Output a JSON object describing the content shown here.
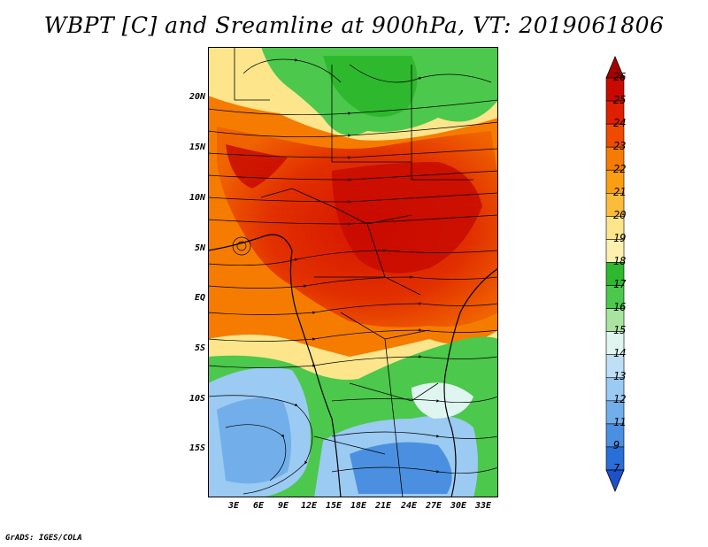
{
  "title": "WBPT [C] and Sreamline at 900hPa, VT: 2019061806",
  "credit": "GrADS: IGES/COLA",
  "map": {
    "lat_labels": [
      "20N",
      "15N",
      "10N",
      "5N",
      "EQ",
      "5S",
      "10S",
      "15S"
    ],
    "lon_labels": [
      "3E",
      "6E",
      "9E",
      "12E",
      "15E",
      "18E",
      "21E",
      "24E",
      "27E",
      "30E",
      "33E"
    ]
  },
  "colorbar": {
    "labels": [
      "26",
      "25",
      "24",
      "23",
      "22",
      "21",
      "20",
      "19",
      "18",
      "17",
      "16",
      "15",
      "14",
      "13",
      "12",
      "11",
      "9",
      "7"
    ],
    "colors": [
      "#a50000",
      "#c80a00",
      "#e01e00",
      "#ee4a00",
      "#f57c00",
      "#fb9e12",
      "#fbbc3c",
      "#fde58c",
      "#fff0b0",
      "#2eb82e",
      "#4cc84c",
      "#a9e3a0",
      "#dff5f0",
      "#bfdff7",
      "#9bcaf2",
      "#72afea",
      "#4b90e0",
      "#2a6ed8",
      "#1e50c8"
    ]
  }
}
